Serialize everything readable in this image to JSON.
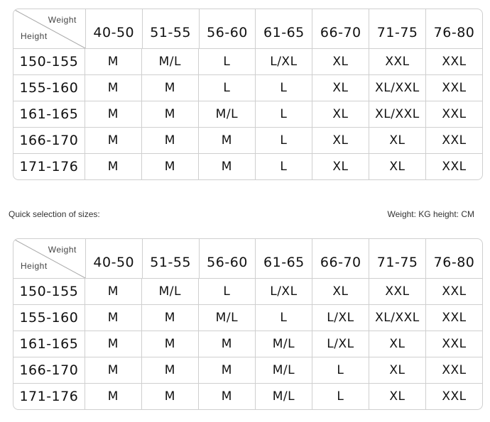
{
  "note_left": "Quick selection of sizes:",
  "note_right": "Weight: KG height: CM",
  "tables": [
    {
      "corner_weight": "Weight",
      "corner_height": "Height",
      "columns": [
        "40-50",
        "51-55",
        "56-60",
        "61-65",
        "66-70",
        "71-75",
        "76-80"
      ],
      "rows": [
        {
          "height": "150-155",
          "sizes": [
            "M",
            "M/L",
            "L",
            "L/XL",
            "XL",
            "XXL",
            "XXL"
          ]
        },
        {
          "height": "155-160",
          "sizes": [
            "M",
            "M",
            "L",
            "L",
            "XL",
            "XL/XXL",
            "XXL"
          ]
        },
        {
          "height": "161-165",
          "sizes": [
            "M",
            "M",
            "M/L",
            "L",
            "XL",
            "XL/XXL",
            "XXL"
          ]
        },
        {
          "height": "166-170",
          "sizes": [
            "M",
            "M",
            "M",
            "L",
            "XL",
            "XL",
            "XXL"
          ]
        },
        {
          "height": "171-176",
          "sizes": [
            "M",
            "M",
            "M",
            "L",
            "XL",
            "XL",
            "XXL"
          ]
        }
      ]
    },
    {
      "corner_weight": "Weight",
      "corner_height": "Height",
      "columns": [
        "40-50",
        "51-55",
        "56-60",
        "61-65",
        "66-70",
        "71-75",
        "76-80"
      ],
      "rows": [
        {
          "height": "150-155",
          "sizes": [
            "M",
            "M/L",
            "L",
            "L/XL",
            "XL",
            "XXL",
            "XXL"
          ]
        },
        {
          "height": "155-160",
          "sizes": [
            "M",
            "M",
            "M/L",
            "L",
            "L/XL",
            "XL/XXL",
            "XXL"
          ]
        },
        {
          "height": "161-165",
          "sizes": [
            "M",
            "M",
            "M",
            "M/L",
            "L/XL",
            "XL",
            "XXL"
          ]
        },
        {
          "height": "166-170",
          "sizes": [
            "M",
            "M",
            "M",
            "M/L",
            "L",
            "XL",
            "XXL"
          ]
        },
        {
          "height": "171-176",
          "sizes": [
            "M",
            "M",
            "M",
            "M/L",
            "L",
            "XL",
            "XXL"
          ]
        }
      ]
    }
  ]
}
